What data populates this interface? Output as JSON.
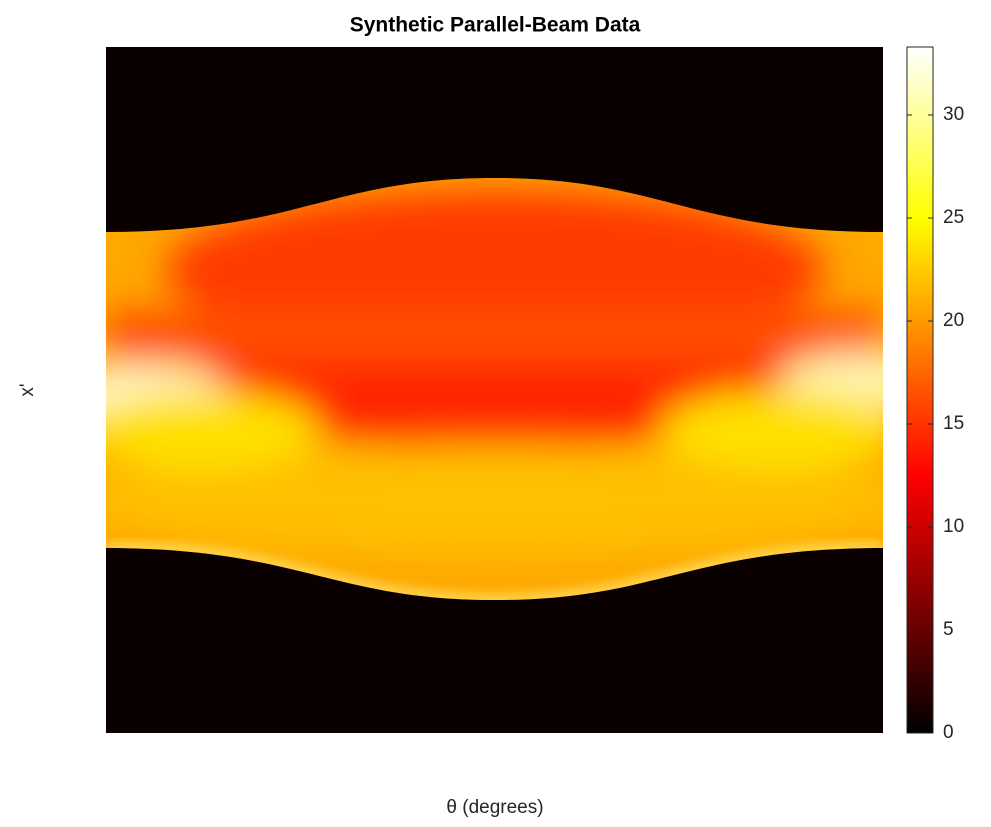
{
  "chart_data": {
    "type": "heatmap",
    "title": "Synthetic Parallel-Beam Data",
    "xlabel": "θ (degrees)",
    "ylabel": "x'",
    "colormap": "hot",
    "clim": [
      0,
      33.3
    ],
    "cticks": [
      0,
      5,
      10,
      15,
      20,
      25,
      30
    ]
  }
}
